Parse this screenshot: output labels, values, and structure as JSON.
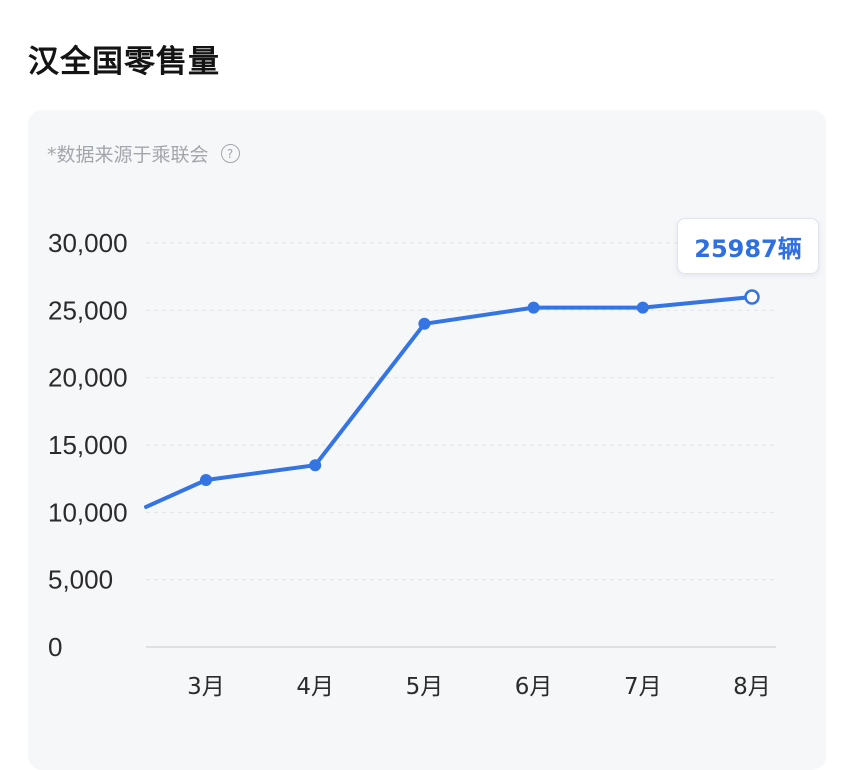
{
  "page": {
    "title": "汉全国零售量",
    "source_note": "*数据来源于乘联会",
    "help_icon": "question-circle-icon"
  },
  "tooltip": {
    "label": "25987辆"
  },
  "colors": {
    "line": "#3474e3",
    "grid": "#e1e3e7",
    "card_bg": "#f6f7f9"
  },
  "chart_data": {
    "type": "line",
    "title": "汉全国零售量",
    "categories": [
      "3月",
      "4月",
      "5月",
      "6月",
      "7月",
      "8月"
    ],
    "x_start_value": 10400,
    "values": [
      12400,
      13500,
      24000,
      25200,
      25200,
      25987
    ],
    "ylim": [
      0,
      30000
    ],
    "yticks": [
      "0",
      "5,000",
      "10,000",
      "15,000",
      "20,000",
      "25,000",
      "30,000"
    ],
    "ytick_values": [
      0,
      5000,
      10000,
      15000,
      20000,
      25000,
      30000
    ],
    "grid": true,
    "grid_style": "dashed",
    "highlighted_point": {
      "category": "8月",
      "value": 25987,
      "label": "25987辆"
    }
  }
}
